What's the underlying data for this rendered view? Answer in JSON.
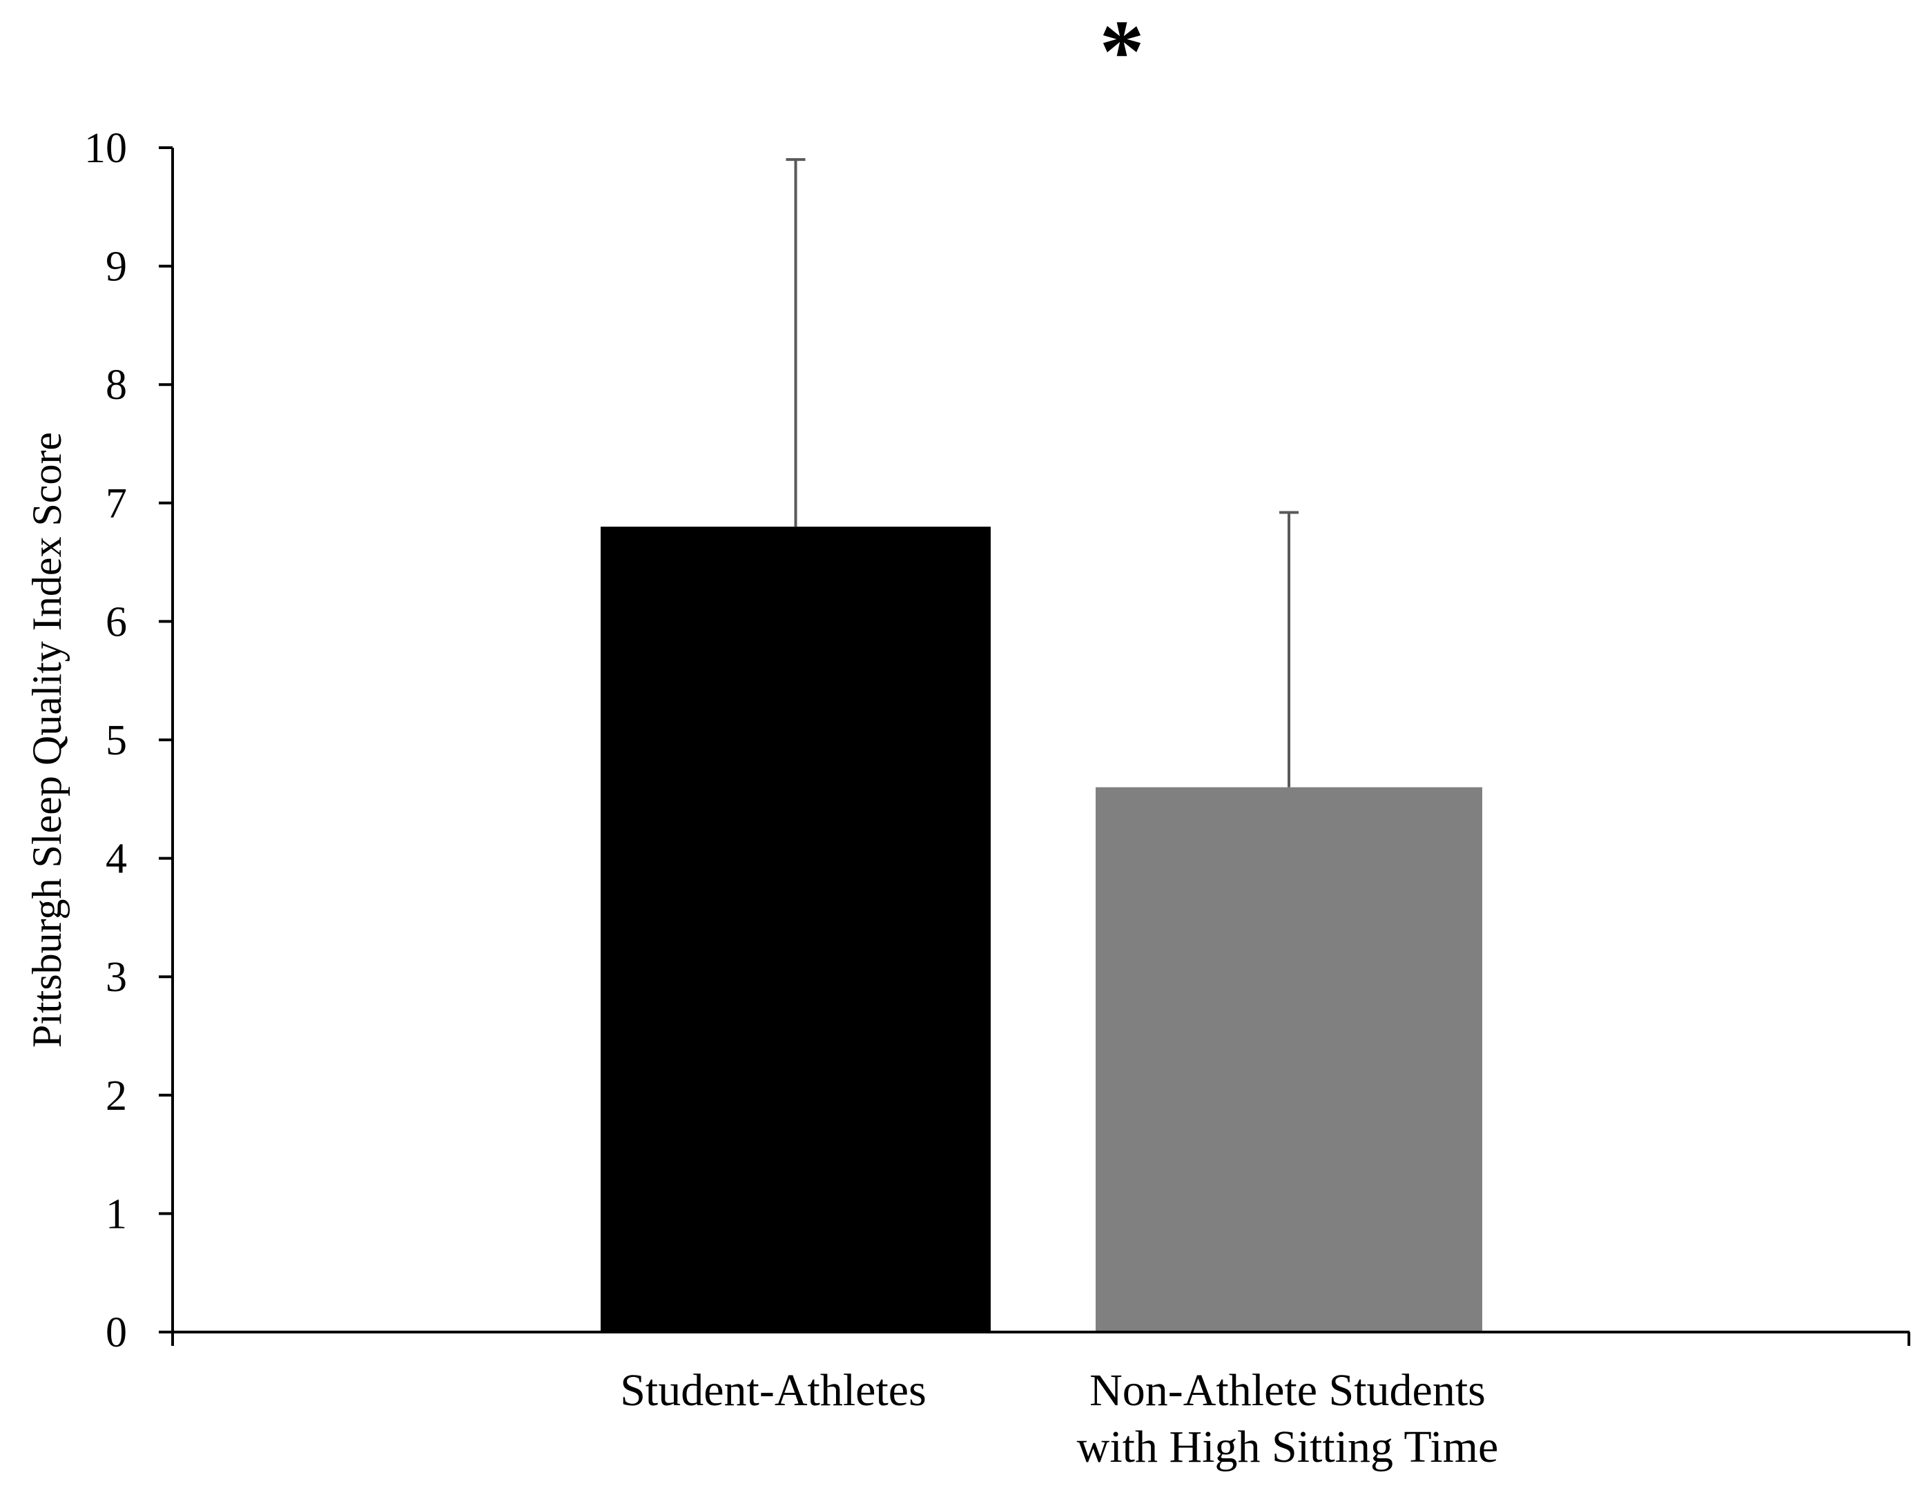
{
  "chart_data": {
    "type": "bar",
    "categories": [
      [
        "Student-Athletes"
      ],
      [
        "Non-Athlete Students",
        "with High Sitting Time"
      ]
    ],
    "values": [
      6.8,
      4.6
    ],
    "error_upper": [
      9.9,
      6.92
    ],
    "bar_colors": [
      "#000000",
      "#808080"
    ],
    "title": "",
    "xlabel": "",
    "ylabel": "Pittsburgh Sleep Quality Index Score",
    "ylim": [
      0,
      10
    ],
    "yticks": [
      0,
      1,
      2,
      3,
      4,
      5,
      6,
      7,
      8,
      9,
      10
    ],
    "ytick_labels": [
      "0",
      "1",
      "2",
      "3",
      "4",
      "5",
      "6",
      "7",
      "8",
      "9",
      "10"
    ],
    "annotation": "*",
    "grid": false,
    "legend": "none"
  }
}
